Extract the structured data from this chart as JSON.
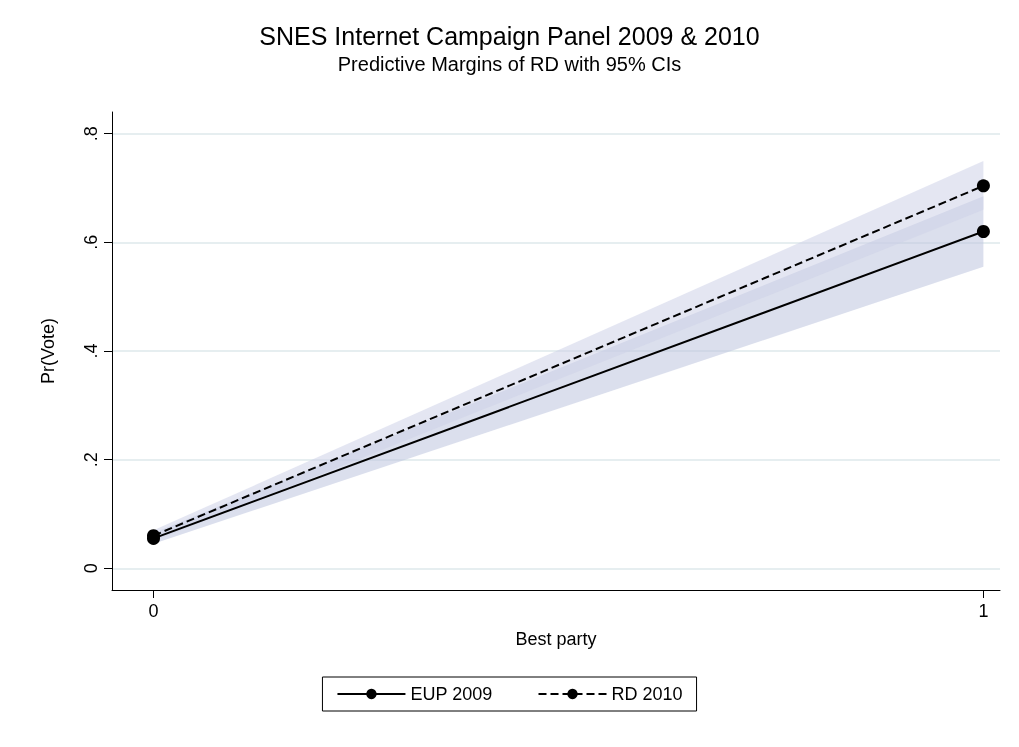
{
  "chart_data": {
    "type": "line",
    "title": "SNES Internet Campaign Panel 2009 & 2010",
    "subtitle": "Predictive Margins of RD with 95% CIs",
    "xlabel": "Best party",
    "ylabel": "Pr(Vote)",
    "x": [
      0,
      1
    ],
    "xlim": [
      -0.05,
      1.02
    ],
    "xticks": [
      0,
      1
    ],
    "ylim": [
      -0.04,
      0.84
    ],
    "yticks": [
      {
        "value": 0,
        "label": "0"
      },
      {
        "value": 0.2,
        "label": ".2"
      },
      {
        "value": 0.4,
        "label": ".4"
      },
      {
        "value": 0.6,
        "label": ".6"
      },
      {
        "value": 0.8,
        "label": ".8"
      }
    ],
    "series": [
      {
        "name": "EUP 2009",
        "color": "#000000",
        "values": [
          0.055,
          0.62
        ],
        "lower": [
          0.045,
          0.555
        ],
        "upper": [
          0.065,
          0.685
        ],
        "line_style": "solid"
      },
      {
        "name": "RD 2010",
        "color": "#000000",
        "values": [
          0.06,
          0.704
        ],
        "lower": [
          0.05,
          0.66
        ],
        "upper": [
          0.07,
          0.75
        ],
        "line_style": "dashed"
      }
    ],
    "marker": "circle",
    "grid": "y",
    "legend": "bottom"
  }
}
